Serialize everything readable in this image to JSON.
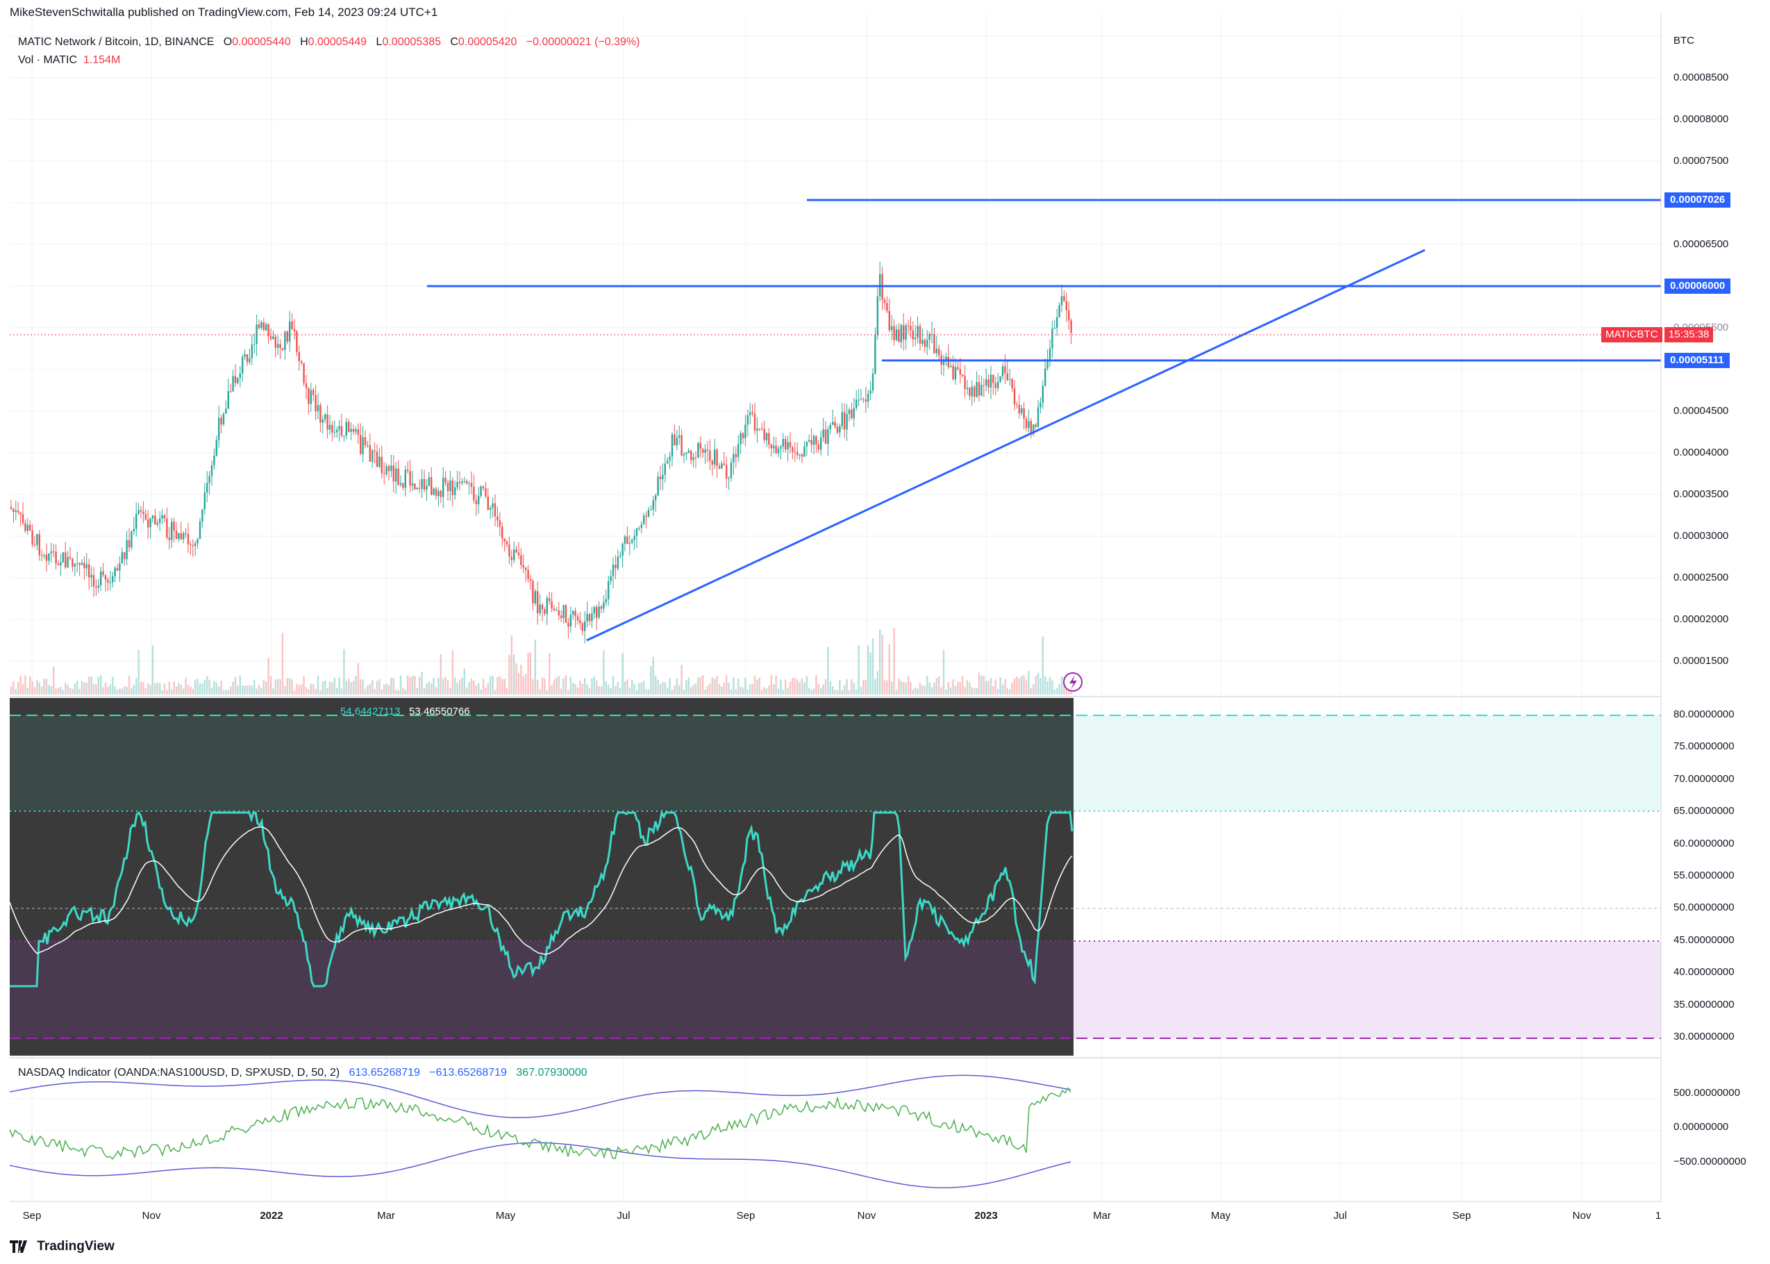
{
  "publisher": "MikeStevenSchwitalla published on TradingView.com, Feb 14, 2023 09:24 UTC+1",
  "legend": {
    "symbol": "MATIC Network / Bitcoin, 1D, BINANCE",
    "o_label": "O",
    "o": "0.00005440",
    "h_label": "H",
    "h": "0.00005449",
    "l_label": "L",
    "l": "0.00005385",
    "c_label": "C",
    "c": "0.00005420",
    "change": "−0.00000021 (−0.39%)",
    "vol_label": "Vol · MATIC",
    "vol": "1.154M"
  },
  "price_axis": {
    "unit": "BTC",
    "labels": [
      "0.00008500",
      "0.00008000",
      "0.00007500",
      "0.00006500",
      "0.00005500",
      "0.00004500",
      "0.00004000",
      "0.00003500",
      "0.00003000",
      "0.00002500",
      "0.00002000",
      "0.00001500"
    ]
  },
  "level_tags": {
    "high": "0.00007026",
    "mid": "0.00006000",
    "low": "0.00005111"
  },
  "symbol_tag": {
    "name": "MATICBTC",
    "countdown": "15:35:38"
  },
  "rsi": {
    "values_a": "54.64427113",
    "values_b": "53.46550766",
    "axis": [
      "80.00000000",
      "75.00000000",
      "70.00000000",
      "65.00000000",
      "60.00000000",
      "55.00000000",
      "50.00000000",
      "45.00000000",
      "40.00000000",
      "35.00000000",
      "30.00000000"
    ]
  },
  "nasdaq": {
    "name": "NASDAQ Indicator (OANDA:NAS100USD, D, SPXUSD, D, 50, 2)",
    "v1": "613.65268719",
    "v2": "−613.65268719",
    "v3": "367.07930000",
    "axis": [
      "500.00000000",
      "0.00000000",
      "−500.00000000"
    ]
  },
  "time_axis": [
    "Sep",
    "Nov",
    "2022",
    "Mar",
    "May",
    "Jul",
    "Sep",
    "Nov",
    "2023",
    "Mar",
    "May",
    "Jul",
    "Sep",
    "Nov",
    "1"
  ],
  "brand": "TradingView",
  "colors": {
    "up": "#089981",
    "down": "#f23645",
    "line": "#2962ff",
    "rsi": "#3dd9c8",
    "nasdaq_green": "#4caf50",
    "nasdaq_blue": "#5b5bd6"
  }
}
